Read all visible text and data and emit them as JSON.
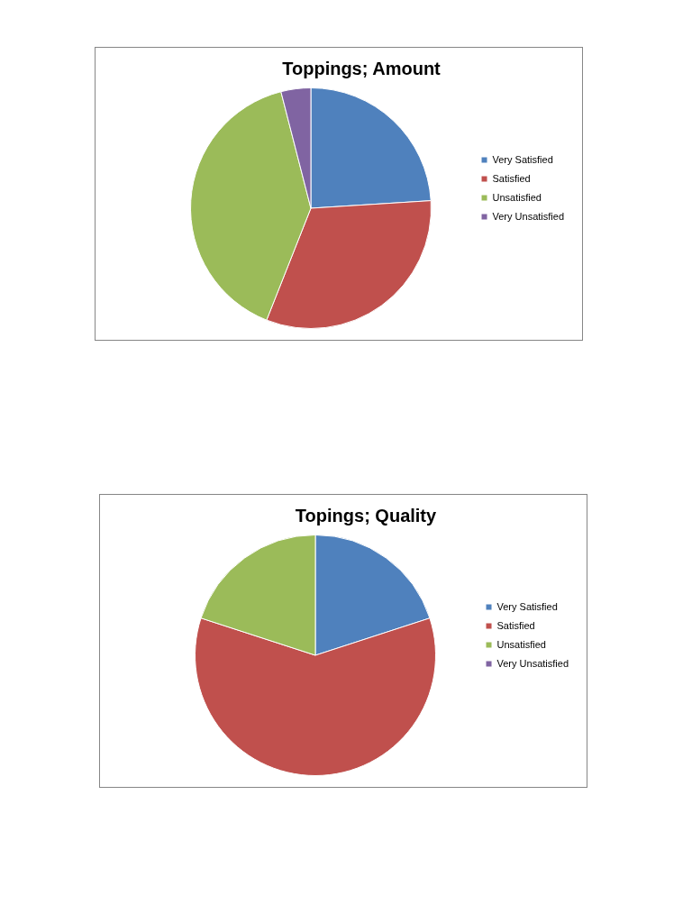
{
  "chart_data": [
    {
      "type": "pie",
      "title": "Toppings; Amount",
      "categories": [
        "Very Satisfied",
        "Satisfied",
        "Unsatisfied",
        "Very Unsatisfied"
      ],
      "values": [
        24,
        32,
        40,
        4
      ],
      "colors": [
        "#4f81bd",
        "#c0504d",
        "#9bbb59",
        "#8064a2"
      ],
      "legend": "right"
    },
    {
      "type": "pie",
      "title": "Topings; Quality",
      "categories": [
        "Very Satisfied",
        "Satisfied",
        "Unsatisfied",
        "Very Unsatisfied"
      ],
      "values": [
        20,
        60,
        20,
        0
      ],
      "colors": [
        "#4f81bd",
        "#c0504d",
        "#9bbb59",
        "#8064a2"
      ],
      "legend": "right"
    }
  ]
}
